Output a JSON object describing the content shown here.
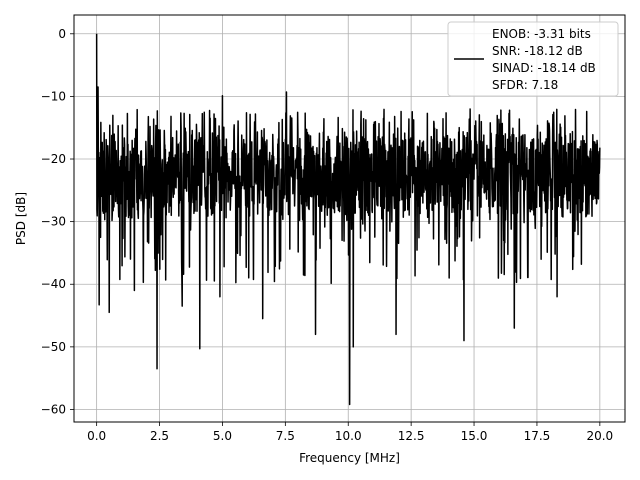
{
  "chart_data": {
    "type": "line",
    "title": "",
    "xlabel": "Frequency [MHz]",
    "ylabel": "PSD [dB]",
    "xlim": [
      -0.9,
      21
    ],
    "ylim": [
      -62,
      3
    ],
    "xticks": [
      0.0,
      2.5,
      5.0,
      7.5,
      10.0,
      12.5,
      15.0,
      17.5,
      20.0
    ],
    "xtick_labels": [
      "0.0",
      "2.5",
      "5.0",
      "7.5",
      "10.0",
      "12.5",
      "15.0",
      "17.5",
      "20.0"
    ],
    "yticks": [
      0,
      -10,
      -20,
      -30,
      -40,
      -50,
      -60
    ],
    "ytick_labels": [
      "0",
      "−10",
      "−20",
      "−30",
      "−40",
      "−50",
      "−60"
    ],
    "grid": true,
    "legend_position": "top-right",
    "series_color": "#000000",
    "legend_lines": [
      "ENOB: -3.31 bits",
      "SNR: -18.12 dB",
      "SINAD: -18.14 dB",
      "SFDR: 7.18"
    ],
    "series": [
      {
        "x_start": 0,
        "x_end": 20,
        "noise_floor_typical_range": [
          -30,
          -15
        ],
        "peak_values": [
          {
            "x": 0.0,
            "y": 0.0
          },
          {
            "x": 0.05,
            "y": -8.5
          },
          {
            "x": 7.55,
            "y": -9.3
          },
          {
            "x": 5.0,
            "y": -9.9
          }
        ],
        "trough_values": [
          {
            "x": 0.1,
            "y": -43.3
          },
          {
            "x": 0.5,
            "y": -44.5
          },
          {
            "x": 1.5,
            "y": -41.0
          },
          {
            "x": 2.4,
            "y": -53.5
          },
          {
            "x": 3.4,
            "y": -43.5
          },
          {
            "x": 4.1,
            "y": -50.3
          },
          {
            "x": 4.9,
            "y": -42.0
          },
          {
            "x": 6.6,
            "y": -45.5
          },
          {
            "x": 8.7,
            "y": -48.0
          },
          {
            "x": 10.05,
            "y": -59.2
          },
          {
            "x": 10.2,
            "y": -50.0
          },
          {
            "x": 11.9,
            "y": -48.0
          },
          {
            "x": 14.6,
            "y": -49.0
          },
          {
            "x": 16.6,
            "y": -47.0
          },
          {
            "x": 18.3,
            "y": -42.0
          }
        ]
      }
    ]
  }
}
